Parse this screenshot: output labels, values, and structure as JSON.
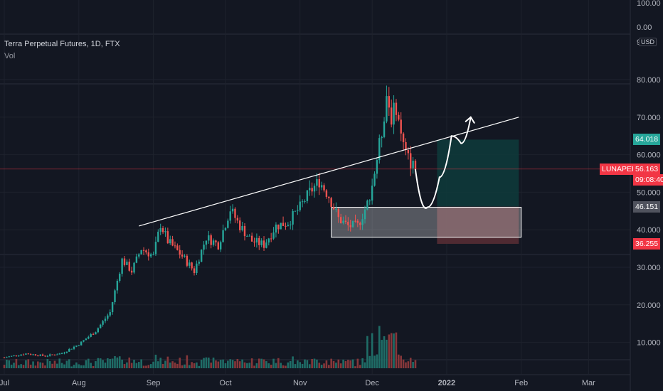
{
  "legend": {
    "title": "Terra Perpetual Futures, 1D, FTX",
    "volume_label": "Vol"
  },
  "currency_button": "USD",
  "indicator_pane_ticks": [
    "100.00",
    "0.00",
    "9"
  ],
  "price_tags": {
    "target": "64.018",
    "symbol": "LUNAPERP",
    "last": "56.163",
    "countdown": "09:08:40",
    "entry": "46.151",
    "stop": "36.255"
  },
  "colors": {
    "background": "#131722",
    "grid": "#1e222d",
    "up": "#26a69a",
    "down": "#ef5350",
    "volume_up": "#1f6d67",
    "volume_down": "#86373a",
    "drawing": "#ffffff",
    "target_zone": "#0e3b3b",
    "stop_zone": "#5a2e35",
    "last_price": "#f23645"
  },
  "chart_data": {
    "type": "candlestick",
    "title": "Terra Perpetual Futures, 1D, FTX",
    "y_ticks": [
      10,
      20,
      30,
      40,
      50,
      60,
      70,
      80
    ],
    "y_tick_labels": [
      "10.000",
      "20.000",
      "30.000",
      "40.000",
      "50.000",
      "60.000",
      "70.000",
      "80.000"
    ],
    "x_tick_labels": [
      "Jul",
      "Aug",
      "Sep",
      "Oct",
      "Nov",
      "Dec",
      "2022",
      "Feb",
      "Mar"
    ],
    "ylim": [
      0,
      88
    ],
    "grid": true,
    "anchors": [
      {
        "date": "2021-07-01",
        "close": 6.0
      },
      {
        "date": "2021-07-10",
        "close": 7.0
      },
      {
        "date": "2021-07-18",
        "close": 6.4
      },
      {
        "date": "2021-07-25",
        "close": 7.1
      },
      {
        "date": "2021-08-01",
        "close": 9.5
      },
      {
        "date": "2021-08-08",
        "close": 13.0
      },
      {
        "date": "2021-08-14",
        "close": 18.0
      },
      {
        "date": "2021-08-19",
        "close": 32.0
      },
      {
        "date": "2021-08-23",
        "close": 29.0
      },
      {
        "date": "2021-08-27",
        "close": 35.0
      },
      {
        "date": "2021-09-01",
        "close": 33.0
      },
      {
        "date": "2021-09-04",
        "close": 41.5
      },
      {
        "date": "2021-09-07",
        "close": 37.0
      },
      {
        "date": "2021-09-13",
        "close": 33.0
      },
      {
        "date": "2021-09-18",
        "close": 29.0
      },
      {
        "date": "2021-09-23",
        "close": 38.0
      },
      {
        "date": "2021-09-28",
        "close": 36.0
      },
      {
        "date": "2021-10-03",
        "close": 45.5
      },
      {
        "date": "2021-10-07",
        "close": 41.0
      },
      {
        "date": "2021-10-12",
        "close": 37.0
      },
      {
        "date": "2021-10-17",
        "close": 36.0
      },
      {
        "date": "2021-10-22",
        "close": 41.0
      },
      {
        "date": "2021-10-27",
        "close": 42.0
      },
      {
        "date": "2021-11-01",
        "close": 46.0
      },
      {
        "date": "2021-11-05",
        "close": 50.0
      },
      {
        "date": "2021-11-09",
        "close": 53.0
      },
      {
        "date": "2021-11-13",
        "close": 49.0
      },
      {
        "date": "2021-11-17",
        "close": 43.0
      },
      {
        "date": "2021-11-21",
        "close": 41.0
      },
      {
        "date": "2021-11-25",
        "close": 41.0
      },
      {
        "date": "2021-11-29",
        "close": 47.0
      },
      {
        "date": "2021-12-01",
        "close": 52.0
      },
      {
        "date": "2021-12-03",
        "close": 59.0
      },
      {
        "date": "2021-12-05",
        "close": 66.0
      },
      {
        "date": "2021-12-07",
        "close": 76.0
      },
      {
        "date": "2021-12-09",
        "close": 70.0
      },
      {
        "date": "2021-12-11",
        "close": 73.0
      },
      {
        "date": "2021-12-13",
        "close": 65.0
      },
      {
        "date": "2021-12-15",
        "close": 60.0
      },
      {
        "date": "2021-12-17",
        "close": 58.0
      },
      {
        "date": "2021-12-19",
        "close": 56.2
      }
    ],
    "last_price": 56.163,
    "trendline": [
      {
        "date": "2021-08-26",
        "value": 41.0
      },
      {
        "date": "2022-01-31",
        "value": 70.0
      }
    ],
    "position": {
      "entry": 46.151,
      "target": 64.018,
      "stop": 36.255,
      "start": "2021-12-28",
      "end": "2022-01-31"
    },
    "demand_zone": {
      "start": "2021-11-14",
      "end": "2022-02-01",
      "top": 46.0,
      "bottom": 38.0
    },
    "projection_path": [
      {
        "date": "2021-12-19",
        "value": 56.0
      },
      {
        "date": "2021-12-24",
        "value": 46.0
      },
      {
        "date": "2021-12-29",
        "value": 54.0
      },
      {
        "date": "2022-01-03",
        "value": 65.0
      },
      {
        "date": "2022-01-07",
        "value": 63.0
      },
      {
        "date": "2022-01-11",
        "value": 70.0
      }
    ]
  }
}
